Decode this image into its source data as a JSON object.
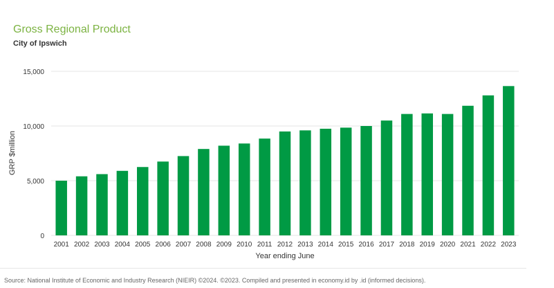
{
  "chart_data": {
    "type": "bar",
    "title": "Gross Regional Product",
    "subtitle": "City of Ipswich",
    "xlabel": "Year ending June",
    "ylabel": "GRP $million",
    "categories": [
      "2001",
      "2002",
      "2003",
      "2004",
      "2005",
      "2006",
      "2007",
      "2008",
      "2009",
      "2010",
      "2011",
      "2012",
      "2013",
      "2014",
      "2015",
      "2016",
      "2017",
      "2018",
      "2019",
      "2020",
      "2021",
      "2022",
      "2023"
    ],
    "values": [
      5000,
      5400,
      5600,
      5900,
      6250,
      6750,
      7250,
      7900,
      8200,
      8400,
      8850,
      9500,
      9600,
      9750,
      9850,
      10000,
      10500,
      11100,
      11150,
      11100,
      11850,
      12800,
      13650
    ],
    "ylim": [
      0,
      15000
    ],
    "yticks": [
      0,
      5000,
      10000,
      15000
    ],
    "ytick_labels": [
      "0",
      "5,000",
      "10,000",
      "15,000"
    ],
    "bar_color": "#009a44",
    "grid": true,
    "legend": "none"
  },
  "footer": {
    "source": "Source: National Institute of Economic and Industry Research (NIEIR) ©2024. ©2023. Compiled and presented in economy.id by .id (informed decisions)."
  },
  "colors": {
    "title": "#7cb342",
    "bar": "#009a44",
    "grid": "#e6e6e6"
  }
}
